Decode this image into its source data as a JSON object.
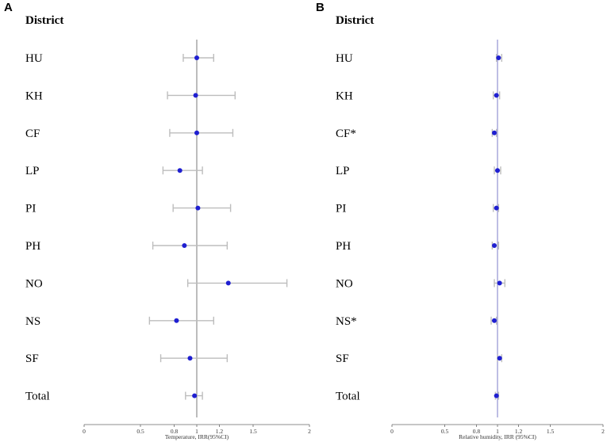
{
  "chart_data": [
    {
      "type": "forest",
      "panel_label": "A",
      "column_header": "District",
      "xlabel": "Temperature, IRR(95%CI)",
      "ticks": [
        0,
        0.5,
        0.8,
        1,
        1.2,
        1.5,
        2
      ],
      "tick_labels": [
        "0",
        "0.5",
        "0.8",
        "1",
        "1.2",
        "1.5",
        "2"
      ],
      "xlim": [
        0,
        2
      ],
      "reference_line": 1,
      "colors": {
        "point": "#1f1fd1",
        "ci": "#bdbdbd",
        "reference": "#999999"
      },
      "rows": [
        {
          "label": "HU",
          "irr": 1.0,
          "lower": 0.88,
          "upper": 1.15
        },
        {
          "label": "KH",
          "irr": 0.99,
          "lower": 0.74,
          "upper": 1.34
        },
        {
          "label": "CF",
          "irr": 1.0,
          "lower": 0.76,
          "upper": 1.32
        },
        {
          "label": "LP",
          "irr": 0.85,
          "lower": 0.7,
          "upper": 1.05
        },
        {
          "label": "PI",
          "irr": 1.01,
          "lower": 0.79,
          "upper": 1.3
        },
        {
          "label": "PH",
          "irr": 0.89,
          "lower": 0.61,
          "upper": 1.27
        },
        {
          "label": "NO",
          "irr": 1.28,
          "lower": 0.92,
          "upper": 1.8
        },
        {
          "label": "NS",
          "irr": 0.82,
          "lower": 0.58,
          "upper": 1.15
        },
        {
          "label": "SF",
          "irr": 0.94,
          "lower": 0.68,
          "upper": 1.27
        },
        {
          "label": "Total",
          "irr": 0.98,
          "lower": 0.9,
          "upper": 1.05
        }
      ]
    },
    {
      "type": "forest",
      "panel_label": "B",
      "column_header": "District",
      "xlabel": "Relative humidity, IRR (95%CI)",
      "ticks": [
        0,
        0.5,
        0.8,
        1,
        1.2,
        1.5,
        2
      ],
      "tick_labels": [
        "0",
        "0.5",
        "0.8",
        "1",
        "1.2",
        "1.5",
        "2"
      ],
      "xlim": [
        0,
        2
      ],
      "reference_line": 1,
      "colors": {
        "point": "#1f1fd1",
        "ci": "#bdbdbd",
        "reference": "#9a9ad6"
      },
      "rows": [
        {
          "label": "HU",
          "irr": 1.01,
          "lower": 0.99,
          "upper": 1.04
        },
        {
          "label": "KH",
          "irr": 0.99,
          "lower": 0.96,
          "upper": 1.02
        },
        {
          "label": "CF*",
          "irr": 0.97,
          "lower": 0.95,
          "upper": 0.99
        },
        {
          "label": "LP",
          "irr": 1.0,
          "lower": 0.97,
          "upper": 1.03
        },
        {
          "label": "PI",
          "irr": 0.99,
          "lower": 0.96,
          "upper": 1.01
        },
        {
          "label": "PH",
          "irr": 0.97,
          "lower": 0.95,
          "upper": 1.01
        },
        {
          "label": "NO",
          "irr": 1.02,
          "lower": 0.97,
          "upper": 1.07
        },
        {
          "label": "NS*",
          "irr": 0.97,
          "lower": 0.94,
          "upper": 0.99
        },
        {
          "label": "SF",
          "irr": 1.02,
          "lower": 1.0,
          "upper": 1.04
        },
        {
          "label": "Total",
          "irr": 0.99,
          "lower": 0.98,
          "upper": 1.01
        }
      ]
    }
  ]
}
